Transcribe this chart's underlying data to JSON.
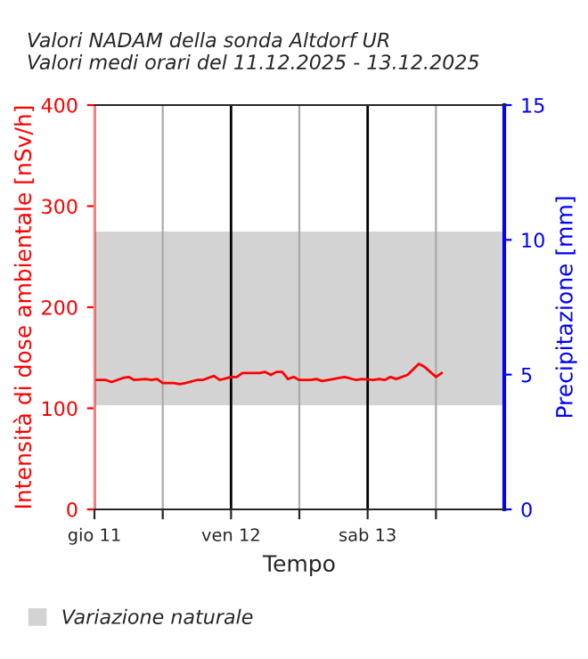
{
  "chart_data": {
    "type": "line",
    "title": "Valori NADAM della sonda Altdorf UR\nValori medi orari del 11.12.2025 - 13.12.2025",
    "xlabel": "Tempo",
    "ylabel": "Intensità di dose ambientale [nSv/h]",
    "y2label": "Precipitazione [mm]",
    "x": [
      "2025-12-11T00:00",
      "2025-12-11T02:00",
      "2025-12-11T03:00",
      "2025-12-11T05:00",
      "2025-12-11T06:00",
      "2025-12-11T07:00",
      "2025-12-11T09:00",
      "2025-12-11T10:00",
      "2025-12-11T11:00",
      "2025-12-11T12:00",
      "2025-12-11T14:00",
      "2025-12-11T15:00",
      "2025-12-11T16:00",
      "2025-12-11T18:00",
      "2025-12-11T19:00",
      "2025-12-11T21:00",
      "2025-12-11T22:00",
      "2025-12-12T00:00",
      "2025-12-12T01:00",
      "2025-12-12T02:00",
      "2025-12-12T05:00",
      "2025-12-12T06:00",
      "2025-12-12T07:00",
      "2025-12-12T08:00",
      "2025-12-12T09:00",
      "2025-12-12T10:00",
      "2025-12-12T11:00",
      "2025-12-12T12:00",
      "2025-12-12T14:00",
      "2025-12-12T15:00",
      "2025-12-12T16:00",
      "2025-12-12T18:00",
      "2025-12-12T19:00",
      "2025-12-12T20:00",
      "2025-12-12T22:00",
      "2025-12-12T23:00",
      "2025-12-13T01:00",
      "2025-12-13T02:00",
      "2025-12-13T03:00",
      "2025-12-13T04:00",
      "2025-12-13T05:00",
      "2025-12-13T07:00",
      "2025-12-13T09:00",
      "2025-12-13T10:00",
      "2025-12-13T11:00",
      "2025-12-13T12:00",
      "2025-12-13T13:00"
    ],
    "series": [
      {
        "color": "#ff0000",
        "values": [
          128,
          128,
          126,
          130,
          131,
          128,
          129,
          128,
          129,
          125,
          125,
          124,
          125,
          128,
          128,
          132,
          128,
          131,
          131,
          135,
          135,
          136,
          133,
          136,
          136,
          129,
          131,
          128,
          128,
          129,
          127,
          129,
          130,
          131,
          128,
          129,
          128,
          129,
          128,
          131,
          129,
          133,
          144,
          141,
          136,
          131,
          135
        ]
      }
    ],
    "xlim": [
      "2025-12-11",
      "2025-12-14"
    ],
    "xticks": [
      {
        "value": "2025-12-11",
        "label": "gio 11"
      },
      {
        "value": "2025-12-11T12:00",
        "label": null
      },
      {
        "value": "2025-12-12",
        "label": "ven 12"
      },
      {
        "value": "2025-12-12T12:00",
        "label": null
      },
      {
        "value": "2025-12-13",
        "label": "sab 13"
      },
      {
        "value": "2025-12-13T12:00",
        "label": null
      }
    ],
    "ylim": [
      0,
      400
    ],
    "yticks": [
      0,
      100,
      200,
      300,
      400
    ],
    "y2lim": [
      0,
      15
    ],
    "y2ticks": [
      0,
      5,
      10,
      15
    ],
    "bands": [
      {
        "axis": "y",
        "from": 103,
        "to": 275,
        "label": "Variazione naturale",
        "color": "#d3d3d3"
      }
    ],
    "grid": "x",
    "legend": "bottom left",
    "marker": "none",
    "line_style": "solid"
  }
}
